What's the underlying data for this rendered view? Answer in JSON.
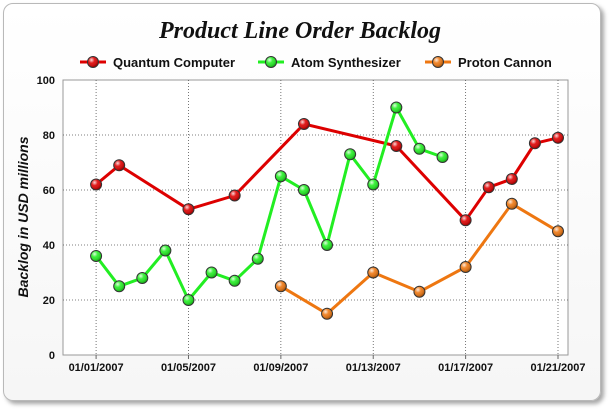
{
  "chart_data": {
    "type": "line",
    "title": "Product Line Order Backlog",
    "xlabel": "",
    "ylabel": "Backlog in USD millions",
    "ylim": [
      0,
      100
    ],
    "yticks": [
      0,
      20,
      40,
      60,
      80,
      100
    ],
    "xlim": [
      "12/31/2006",
      "01/21/2007"
    ],
    "xtick_labels": [
      "01/01/2007",
      "01/05/2007",
      "01/09/2007",
      "01/13/2007",
      "01/17/2007",
      "01/21/2007"
    ],
    "xtick_dates": [
      "01/01/2007",
      "01/05/2007",
      "01/09/2007",
      "01/13/2007",
      "01/17/2007",
      "01/21/2007"
    ],
    "grid": true,
    "legend_position": "top",
    "series": [
      {
        "name": "Quantum Computer",
        "color": "#dd0000",
        "points": [
          {
            "x": "01/01/2007",
            "y": 62
          },
          {
            "x": "01/02/2007",
            "y": 69
          },
          {
            "x": "01/05/2007",
            "y": 53
          },
          {
            "x": "01/07/2007",
            "y": 58
          },
          {
            "x": "01/10/2007",
            "y": 84
          },
          {
            "x": "01/14/2007",
            "y": 76
          },
          {
            "x": "01/17/2007",
            "y": 49
          },
          {
            "x": "01/18/2007",
            "y": 61
          },
          {
            "x": "01/19/2007",
            "y": 64
          },
          {
            "x": "01/20/2007",
            "y": 77
          },
          {
            "x": "01/21/2007",
            "y": 79
          }
        ]
      },
      {
        "name": "Atom Synthesizer",
        "color": "#22ee22",
        "points": [
          {
            "x": "01/01/2007",
            "y": 36
          },
          {
            "x": "01/02/2007",
            "y": 25
          },
          {
            "x": "01/03/2007",
            "y": 28
          },
          {
            "x": "01/04/2007",
            "y": 38
          },
          {
            "x": "01/05/2007",
            "y": 20
          },
          {
            "x": "01/06/2007",
            "y": 30
          },
          {
            "x": "01/07/2007",
            "y": 27
          },
          {
            "x": "01/08/2007",
            "y": 35
          },
          {
            "x": "01/09/2007",
            "y": 65
          },
          {
            "x": "01/10/2007",
            "y": 60
          },
          {
            "x": "01/11/2007",
            "y": 40
          },
          {
            "x": "01/12/2007",
            "y": 73
          },
          {
            "x": "01/13/2007",
            "y": 62
          },
          {
            "x": "01/14/2007",
            "y": 90
          },
          {
            "x": "01/15/2007",
            "y": 75
          },
          {
            "x": "01/16/2007",
            "y": 72
          }
        ]
      },
      {
        "name": "Proton Cannon",
        "color": "#ee7711",
        "points": [
          {
            "x": "01/09/2007",
            "y": 25
          },
          {
            "x": "01/11/2007",
            "y": 15
          },
          {
            "x": "01/13/2007",
            "y": 30
          },
          {
            "x": "01/15/2007",
            "y": 23
          },
          {
            "x": "01/17/2007",
            "y": 32
          },
          {
            "x": "01/19/2007",
            "y": 55
          },
          {
            "x": "01/21/2007",
            "y": 45
          }
        ]
      }
    ]
  }
}
